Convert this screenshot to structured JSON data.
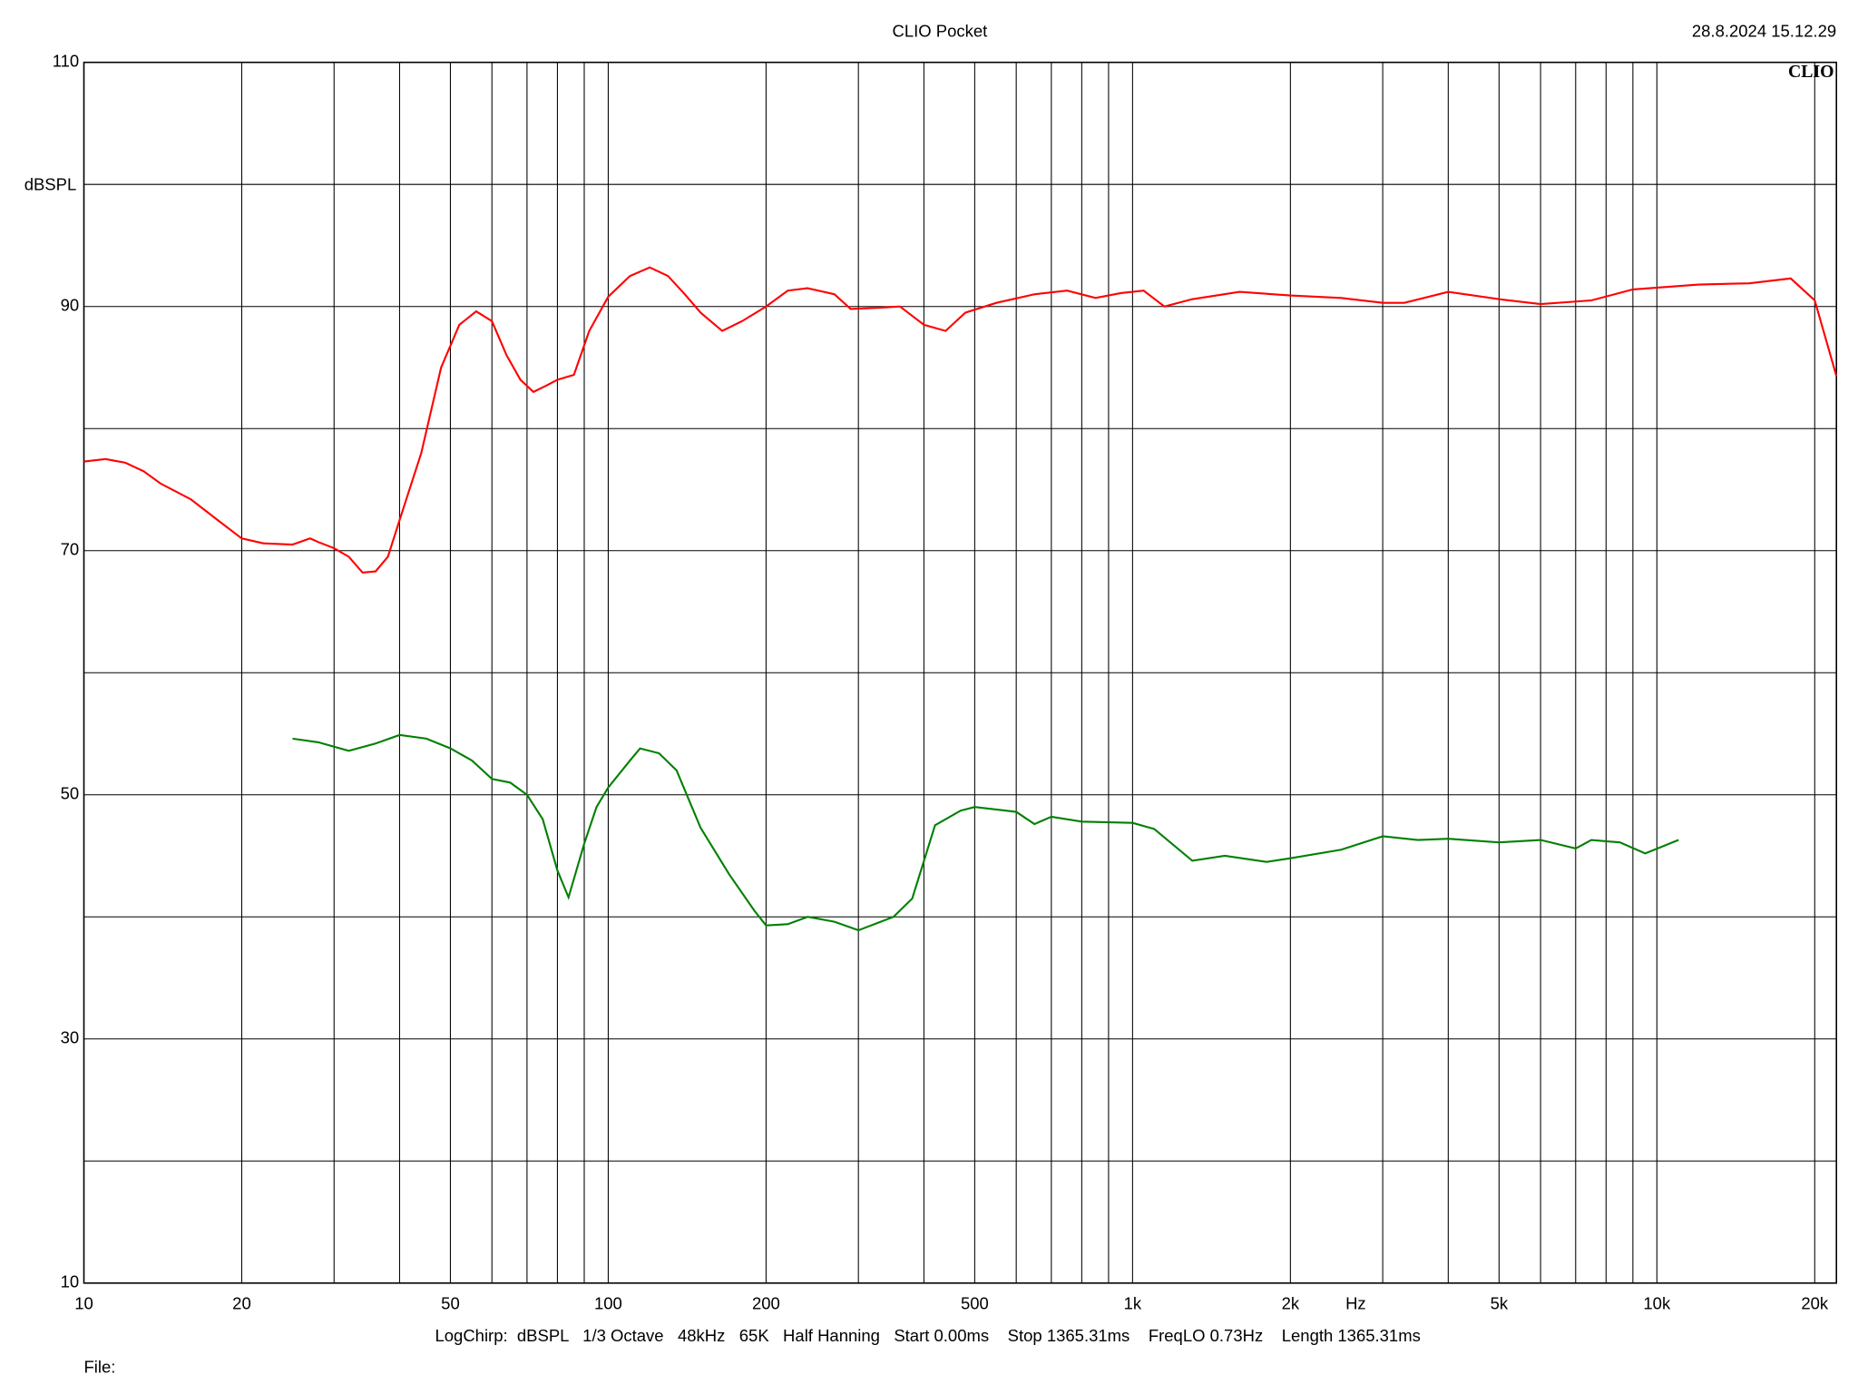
{
  "chart_data": {
    "type": "line",
    "title": "CLIO Pocket",
    "timestamp": "28.8.2024 15.12.29",
    "brand": "CLIO",
    "ylabel": "dBSPL",
    "xlabel": "Hz",
    "footer": "LogChirp:  dBSPL   1/3 Octave   48kHz   65K   Half Hanning   Start 0.00ms    Stop 1365.31ms    FreqLO 0.73Hz    Length 1365.31ms",
    "file_label": "File:",
    "xscale": "log",
    "xlim": [
      10,
      22000
    ],
    "ylim": [
      10,
      110
    ],
    "xticks": [
      10,
      20,
      50,
      100,
      200,
      500,
      {
        "value": 1000,
        "label": "1k"
      },
      {
        "value": 2000,
        "label": "2k"
      },
      {
        "value": 5000,
        "label": "5k"
      },
      {
        "value": 10000,
        "label": "10k"
      },
      {
        "value": 20000,
        "label": "20k"
      }
    ],
    "yticks": [
      10,
      30,
      50,
      70,
      90,
      110
    ],
    "grid": true,
    "x_minor_grid": "log-decades",
    "y_minor_grid_per_interval": 1,
    "series": [
      {
        "color": "#ff0000",
        "x": [
          10,
          11,
          12,
          13,
          14,
          16,
          18,
          20,
          22,
          25,
          27,
          28,
          30,
          32,
          34,
          36,
          38,
          40,
          44,
          48,
          52,
          56,
          60,
          64,
          68,
          72,
          76,
          80,
          86,
          92,
          100,
          110,
          120,
          130,
          140,
          150,
          165,
          180,
          200,
          220,
          240,
          270,
          290,
          330,
          360,
          400,
          440,
          480,
          550,
          650,
          750,
          850,
          950,
          1050,
          1150,
          1300,
          1600,
          2000,
          2500,
          3000,
          3300,
          4000,
          5000,
          6000,
          7500,
          9000,
          12000,
          15000,
          18000,
          20000,
          22000
        ],
        "values": [
          77.3,
          77.5,
          77.2,
          76.5,
          75.5,
          74.2,
          72.5,
          71.0,
          70.6,
          70.5,
          71.0,
          70.7,
          70.2,
          69.5,
          68.2,
          68.3,
          69.5,
          72.5,
          78,
          85,
          88.5,
          89.6,
          88.8,
          86,
          84,
          83,
          83.5,
          84,
          84.4,
          88,
          90.8,
          92.5,
          93.2,
          92.5,
          91,
          89.5,
          88,
          88.8,
          90,
          91.3,
          91.5,
          91,
          89.8,
          89.9,
          90,
          88.5,
          88,
          89.5,
          90.3,
          91,
          91.3,
          90.7,
          91.1,
          91.3,
          90,
          90.6,
          91.2,
          90.9,
          90.7,
          90.3,
          90.3,
          91.2,
          90.6,
          90.2,
          90.5,
          91.4,
          91.8,
          91.9,
          92.3,
          90.5,
          84.3
        ]
      },
      {
        "color": "#008000",
        "x": [
          25,
          28,
          32,
          36,
          40,
          45,
          50,
          55,
          60,
          65,
          70,
          75,
          80,
          84,
          90,
          95,
          100,
          110,
          115,
          125,
          135,
          150,
          170,
          190,
          200,
          220,
          240,
          270,
          300,
          350,
          380,
          420,
          470,
          500,
          600,
          650,
          700,
          800,
          1000,
          1100,
          1300,
          1500,
          1800,
          2000,
          2500,
          3000,
          3500,
          4000,
          5000,
          6000,
          7000,
          7500,
          8500,
          9500,
          11000
        ],
        "values": [
          54.6,
          54.3,
          53.6,
          54.2,
          54.9,
          54.6,
          53.8,
          52.8,
          51.3,
          51,
          50,
          48,
          43.8,
          41.6,
          46,
          49,
          50.6,
          52.8,
          53.8,
          53.4,
          52,
          47.3,
          43.5,
          40.5,
          39.3,
          39.4,
          40,
          39.6,
          38.9,
          40,
          41.5,
          47.5,
          48.7,
          49,
          48.6,
          47.6,
          48.2,
          47.8,
          47.7,
          47.2,
          44.6,
          45,
          44.5,
          44.8,
          45.5,
          46.6,
          46.3,
          46.4,
          46.1,
          46.3,
          45.6,
          46.3,
          46.1,
          45.2,
          46.3
        ]
      }
    ]
  }
}
